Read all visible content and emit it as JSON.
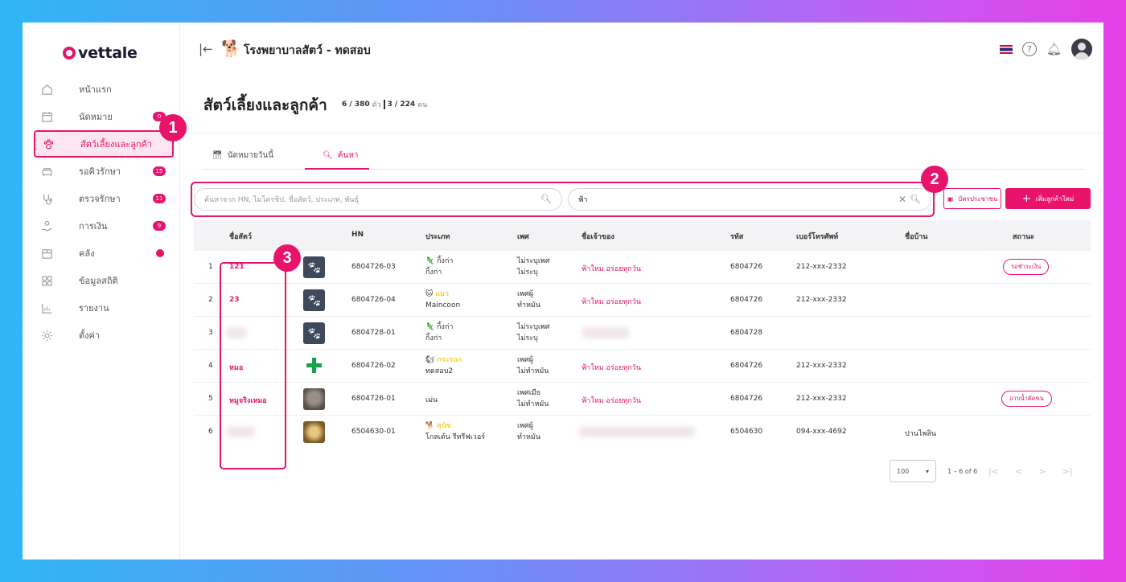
{
  "brand": {
    "logo_text": "vettale"
  },
  "sidebar": {
    "items": [
      {
        "label": "หน้าแรก",
        "icon": "home-icon",
        "badge": ""
      },
      {
        "label": "นัดหมาย",
        "icon": "calendar-icon",
        "badge": "0"
      },
      {
        "label": "สัตว์เลี้ยงและลูกค้า",
        "icon": "paw-icon",
        "badge": "",
        "active": true
      },
      {
        "label": "รอคิวรักษา",
        "icon": "sofa-icon",
        "badge": "15"
      },
      {
        "label": "ตรวจรักษา",
        "icon": "stethoscope-icon",
        "badge": "11"
      },
      {
        "label": "การเงิน",
        "icon": "money-hand-icon",
        "badge": "9"
      },
      {
        "label": "คลัง",
        "icon": "box-icon",
        "badge": "dot"
      },
      {
        "label": "ข้อมูลสถิติ",
        "icon": "grid-icon",
        "badge": ""
      },
      {
        "label": "รายงาน",
        "icon": "bar-chart-icon",
        "badge": ""
      },
      {
        "label": "ตั้งค่า",
        "icon": "gear-icon",
        "badge": ""
      }
    ]
  },
  "topbar": {
    "clinic_name": "โรงพยาบาลสัตว์ - ทดสอบ"
  },
  "page": {
    "title": "สัตว์เลี้ยงและลูกค้า",
    "count_a": "6 / 380",
    "count_a_unit": "ตัว",
    "count_b": "3 / 224",
    "count_b_unit": "คน"
  },
  "tabs": {
    "today": "นัดหมายวันนี้",
    "search": "ค้นหา"
  },
  "search": {
    "placeholder": "ค้นหาจาก HN, ไมโครชิป, ชื่อสัตว์, ประเภท, พันธุ์",
    "owner_value": "ฟ้า"
  },
  "buttons": {
    "card": "บัตรประชาชน",
    "add": "เพิ่มลูกค้าใหม่"
  },
  "callouts": {
    "one": "1",
    "two": "2",
    "three": "3"
  },
  "table": {
    "headers": {
      "name": "ชื่อสัตว์",
      "hn": "HN",
      "type": "ประเภท",
      "sex": "เพศ",
      "owner": "ชื่อเจ้าของ",
      "code": "รหัส",
      "phone": "เบอร์โทรศัพท์",
      "address": "ชื่อบ้าน",
      "status": "สถานะ"
    },
    "rows": [
      {
        "idx": "1",
        "name": "121",
        "pic": "paw",
        "hn": "6804726-03",
        "type_emoji": "🦎",
        "type": "กิ้งก่า",
        "breed": "กิ้งก่า",
        "sex1": "ไม่ระบุเพศ",
        "sex2": "ไม่ระบุ",
        "owner": "ฟ้าใหม อร่อยทุกวัน",
        "code": "6804726",
        "phone": "212-xxx-2332",
        "address": "",
        "status": "รอชำระเงิน"
      },
      {
        "idx": "2",
        "name": "23",
        "pic": "paw",
        "hn": "6804726-04",
        "type_emoji": "🐱",
        "type": "แมว",
        "breed": "Maincoon",
        "sex1": "เพศผู้",
        "sex2": "ทำหมัน",
        "owner": "ฟ้าใหม อร่อยทุกวัน",
        "code": "6804726",
        "phone": "212-xxx-2332",
        "address": "",
        "status": ""
      },
      {
        "idx": "3",
        "name": "",
        "pic": "paw",
        "hn": "6804728-01",
        "type_emoji": "🦎",
        "type": "กิ้งก่า",
        "breed": "กิ้งก่า",
        "sex1": "ไม่ระบุเพศ",
        "sex2": "ไม่ระบุ",
        "owner": "",
        "code": "6804728",
        "phone": "",
        "address": "",
        "status": ""
      },
      {
        "idx": "4",
        "name": "หมอ",
        "pic": "cross",
        "hn": "6804726-02",
        "type_emoji": "🐿",
        "type": "กระรอก",
        "breed": "ทดสอบ2",
        "sex1": "เพศผู้",
        "sex2": "ไม่ทำหมัน",
        "owner": "ฟ้าใหม อร่อยทุกวัน",
        "code": "6804726",
        "phone": "212-xxx-2332",
        "address": "",
        "status": ""
      },
      {
        "idx": "5",
        "name": "หมูจริงเหมอ",
        "pic": "photo1",
        "hn": "6804726-01",
        "type_emoji": "",
        "type": "เม่น",
        "breed": "",
        "sex1": "เพศเมีย",
        "sex2": "ไม่ทำหมัน",
        "owner": "ฟ้าใหม อร่อยทุกวัน",
        "code": "6804726",
        "phone": "212-xxx-2332",
        "address": "",
        "status": "อาบน้ำตัดขน"
      },
      {
        "idx": "6",
        "name": "",
        "pic": "photo2",
        "hn": "6504630-01",
        "type_emoji": "🐕",
        "type": "สุนัข",
        "breed": "โกลเด้น รีทรีฟเวอร์",
        "sex1": "เพศผู้",
        "sex2": "ทำหมัน",
        "owner": "",
        "code": "6504630",
        "phone": "094-xxx-4692",
        "address": "ปานไพลิน",
        "status": ""
      }
    ]
  },
  "pagination": {
    "rows_per_page": "100",
    "range": "1 – 6 of 6"
  },
  "colors": {
    "accent": "#e8146c",
    "sidebar_active_bg": "#fde6f0"
  }
}
